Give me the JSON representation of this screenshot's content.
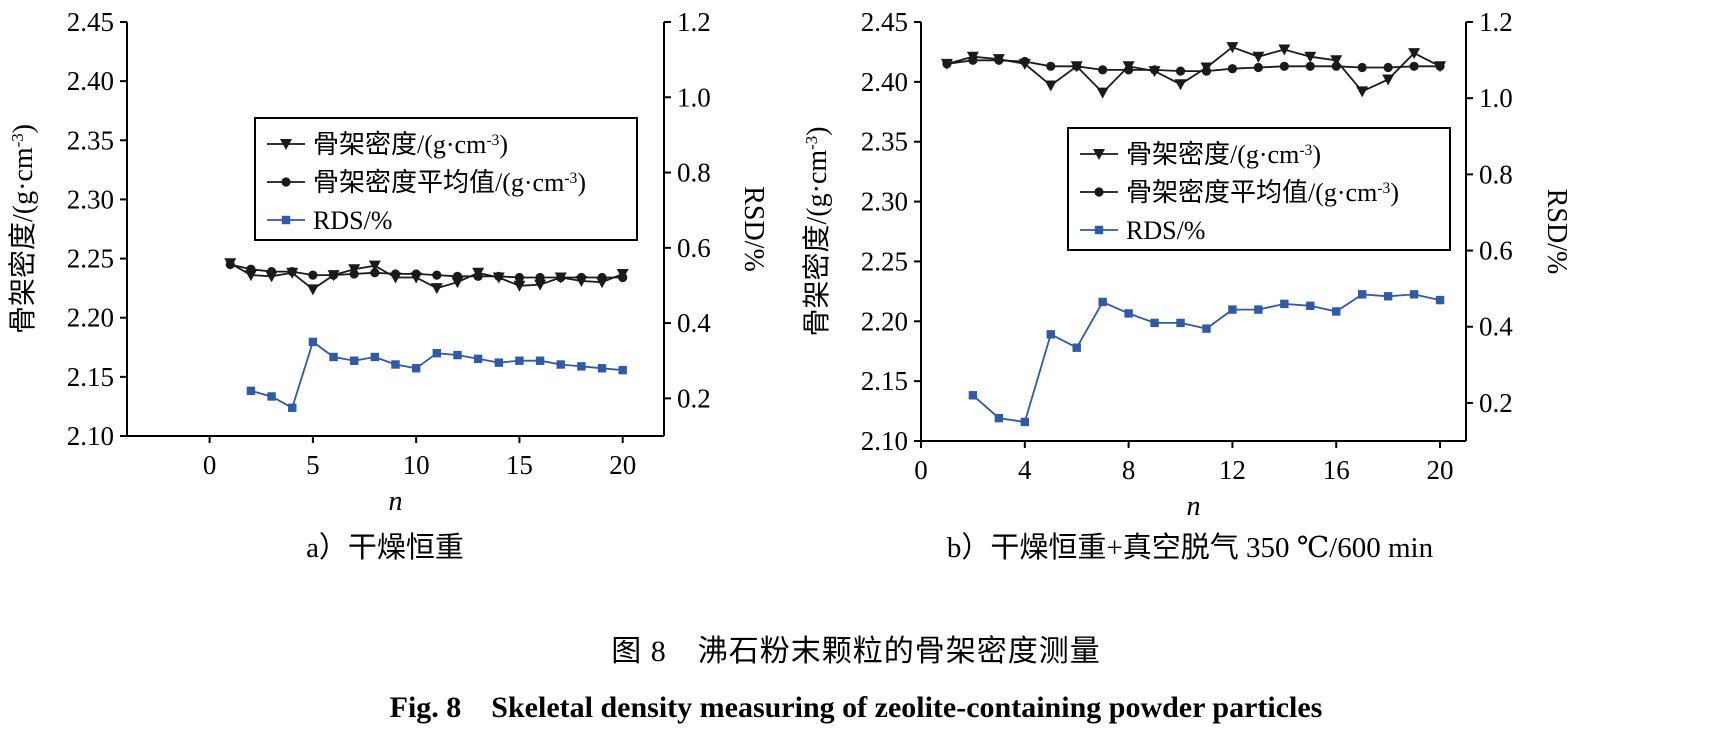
{
  "figure": {
    "caption_cn": "图 8　沸石粉末颗粒的骨架密度测量",
    "caption_en": "Fig. 8　Skeletal density measuring of zeolite-containing powder particles"
  },
  "chart_data": [
    {
      "type": "line",
      "panel_label": "a）干燥恒重",
      "xlabel": "n",
      "ylabel_left": "骨架密度/(g·cm-3)",
      "ylabel_right": "RSD/%",
      "xlim": [
        -4,
        22
      ],
      "xticks": [
        0,
        5,
        10,
        15,
        20
      ],
      "ylim_left": [
        2.1,
        2.45
      ],
      "yticks_left": [
        "2.10",
        "2.15",
        "2.20",
        "2.25",
        "2.30",
        "2.35",
        "2.40",
        "2.45"
      ],
      "ylim_right": [
        0.1,
        1.2
      ],
      "yticks_right": [
        "0.2",
        "0.4",
        "0.6",
        "0.8",
        "1.0",
        "1.2"
      ],
      "legend": [
        "骨架密度/(g·cm-3)",
        "骨架密度平均值/(g·cm-3)",
        "RDS/%"
      ],
      "series": [
        {
          "name": "骨架密度/(g·cm-3)",
          "axis": "left",
          "marker": "triangle-down",
          "color": "#1a1a1a",
          "x": [
            1,
            2,
            3,
            4,
            5,
            6,
            7,
            8,
            9,
            10,
            11,
            12,
            13,
            14,
            15,
            16,
            17,
            18,
            19,
            20
          ],
          "values": [
            2.246,
            2.236,
            2.235,
            2.238,
            2.224,
            2.236,
            2.241,
            2.244,
            2.234,
            2.234,
            2.225,
            2.23,
            2.238,
            2.234,
            2.227,
            2.228,
            2.234,
            2.231,
            2.23,
            2.237
          ]
        },
        {
          "name": "骨架密度平均值/(g·cm-3)",
          "axis": "left",
          "marker": "circle",
          "color": "#1a1a1a",
          "x": [
            1,
            2,
            3,
            4,
            5,
            6,
            7,
            8,
            9,
            10,
            11,
            12,
            13,
            14,
            15,
            16,
            17,
            18,
            19,
            20
          ],
          "values": [
            2.245,
            2.241,
            2.239,
            2.239,
            2.236,
            2.236,
            2.237,
            2.238,
            2.237,
            2.237,
            2.236,
            2.235,
            2.235,
            2.235,
            2.234,
            2.234,
            2.234,
            2.234,
            2.234,
            2.234
          ]
        },
        {
          "name": "RDS/%",
          "axis": "right",
          "marker": "square",
          "color": "#2e5aa8",
          "x": [
            2,
            3,
            4,
            5,
            6,
            7,
            8,
            9,
            10,
            11,
            12,
            13,
            14,
            15,
            16,
            17,
            18,
            19,
            20
          ],
          "values": [
            0.22,
            0.205,
            0.175,
            0.35,
            0.31,
            0.3,
            0.31,
            0.29,
            0.28,
            0.32,
            0.315,
            0.305,
            0.295,
            0.3,
            0.3,
            0.29,
            0.285,
            0.28,
            0.275
          ]
        }
      ]
    },
    {
      "type": "line",
      "panel_label": "b）干燥恒重+真空脱气 350 ℃/600 min",
      "xlabel": "n",
      "ylabel_left": "骨架密度/(g·cm-3)",
      "ylabel_right": "RSD/%",
      "xlim": [
        0,
        21
      ],
      "xticks": [
        0,
        4,
        8,
        12,
        16,
        20
      ],
      "ylim_left": [
        2.1,
        2.45
      ],
      "yticks_left": [
        "2.10",
        "2.15",
        "2.20",
        "2.25",
        "2.30",
        "2.35",
        "2.40",
        "2.45"
      ],
      "ylim_right": [
        0.1,
        1.2
      ],
      "yticks_right": [
        "0.2",
        "0.4",
        "0.6",
        "0.8",
        "1.0",
        "1.2"
      ],
      "legend": [
        "骨架密度/(g·cm-3)",
        "骨架密度平均值/(g·cm-3)",
        "RDS/%"
      ],
      "series": [
        {
          "name": "骨架密度/(g·cm-3)",
          "axis": "left",
          "marker": "triangle-down",
          "color": "#1a1a1a",
          "x": [
            1,
            2,
            3,
            4,
            5,
            6,
            7,
            8,
            9,
            10,
            11,
            12,
            13,
            14,
            15,
            16,
            17,
            18,
            19,
            20
          ],
          "values": [
            2.415,
            2.421,
            2.419,
            2.415,
            2.397,
            2.413,
            2.391,
            2.413,
            2.409,
            2.398,
            2.412,
            2.429,
            2.421,
            2.427,
            2.421,
            2.418,
            2.392,
            2.402,
            2.424,
            2.413
          ]
        },
        {
          "name": "骨架密度平均值/(g·cm-3)",
          "axis": "left",
          "marker": "circle",
          "color": "#1a1a1a",
          "x": [
            1,
            2,
            3,
            4,
            5,
            6,
            7,
            8,
            9,
            10,
            11,
            12,
            13,
            14,
            15,
            16,
            17,
            18,
            19,
            20
          ],
          "values": [
            2.415,
            2.418,
            2.418,
            2.417,
            2.413,
            2.413,
            2.41,
            2.41,
            2.41,
            2.409,
            2.409,
            2.411,
            2.412,
            2.413,
            2.413,
            2.413,
            2.412,
            2.412,
            2.413,
            2.413
          ]
        },
        {
          "name": "RDS/%",
          "axis": "right",
          "marker": "square",
          "color": "#2e5aa8",
          "x": [
            2,
            3,
            4,
            5,
            6,
            7,
            8,
            9,
            10,
            11,
            12,
            13,
            14,
            15,
            16,
            17,
            18,
            19,
            20
          ],
          "values": [
            0.22,
            0.16,
            0.15,
            0.38,
            0.345,
            0.465,
            0.435,
            0.41,
            0.41,
            0.395,
            0.445,
            0.445,
            0.46,
            0.455,
            0.44,
            0.485,
            0.48,
            0.485,
            0.47
          ]
        }
      ]
    }
  ]
}
